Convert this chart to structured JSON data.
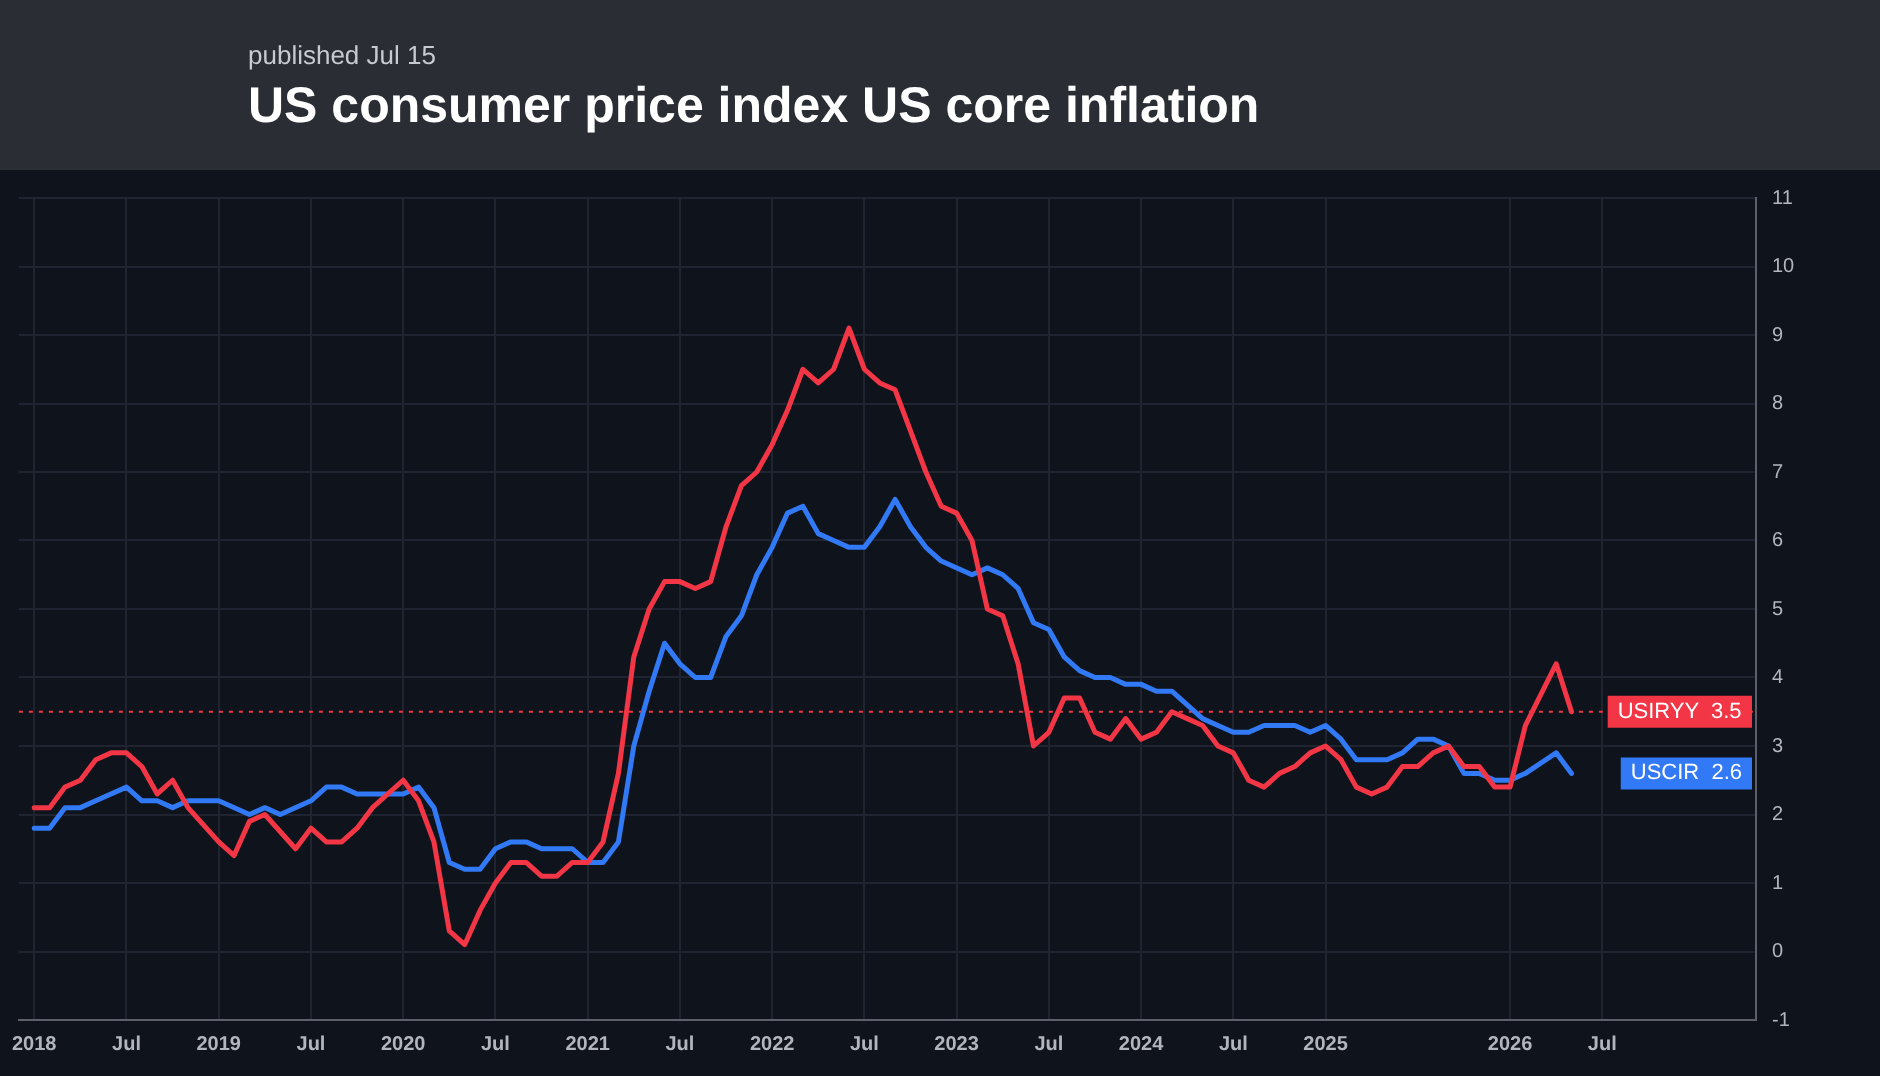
{
  "chart_data": {
    "type": "line",
    "title": "US consumer price index US core inflation",
    "subtitle": "published Jul 15",
    "xlim": [
      "2017-12",
      "2027-05"
    ],
    "xticks": [
      {
        "value": "2018-01",
        "label": "2018"
      },
      {
        "value": "2018-07",
        "label": "Jul"
      },
      {
        "value": "2019-01",
        "label": "2019"
      },
      {
        "value": "2019-07",
        "label": "Jul"
      },
      {
        "value": "2020-01",
        "label": "2020"
      },
      {
        "value": "2020-07",
        "label": "Jul"
      },
      {
        "value": "2021-01",
        "label": "2021"
      },
      {
        "value": "2021-07",
        "label": "Jul"
      },
      {
        "value": "2022-01",
        "label": "2022"
      },
      {
        "value": "2022-07",
        "label": "Jul"
      },
      {
        "value": "2023-01",
        "label": "2023"
      },
      {
        "value": "2023-07",
        "label": "Jul"
      },
      {
        "value": "2024-01",
        "label": "2024"
      },
      {
        "value": "2024-07",
        "label": "Jul"
      },
      {
        "value": "2025-01",
        "label": "2025"
      },
      {
        "value": "2026-01",
        "label": "2026"
      },
      {
        "value": "2026-07",
        "label": "Jul"
      }
    ],
    "ylim": [
      -1,
      11
    ],
    "yticks": [
      -1,
      0,
      1,
      2,
      3,
      4,
      5,
      6,
      7,
      8,
      9,
      10,
      11
    ],
    "grid": true,
    "legend": false,
    "line_style": "solid",
    "ref_lines": [
      {
        "axis": "y",
        "value": 3.5,
        "color": "#f23645",
        "line_style": "dotted"
      }
    ],
    "series": [
      {
        "name": "USIRYY",
        "color": "#f23645",
        "x": [
          "2018-01",
          "2018-02",
          "2018-03",
          "2018-04",
          "2018-05",
          "2018-06",
          "2018-07",
          "2018-08",
          "2018-09",
          "2018-10",
          "2018-11",
          "2019-01",
          "2019-02",
          "2019-03",
          "2019-04",
          "2019-06",
          "2019-07",
          "2019-08",
          "2019-09",
          "2019-10",
          "2019-11",
          "2020-01",
          "2020-02",
          "2020-03",
          "2020-04",
          "2020-05",
          "2020-06",
          "2020-07",
          "2020-08",
          "2020-09",
          "2020-10",
          "2020-11",
          "2020-12",
          "2021-01",
          "2021-02",
          "2021-03",
          "2021-04",
          "2021-05",
          "2021-06",
          "2021-07",
          "2021-08",
          "2021-09",
          "2021-10",
          "2021-11",
          "2021-12",
          "2022-01",
          "2022-02",
          "2022-03",
          "2022-04",
          "2022-05",
          "2022-06",
          "2022-07",
          "2022-08",
          "2022-09",
          "2022-10",
          "2022-11",
          "2022-12",
          "2023-01",
          "2023-02",
          "2023-03",
          "2023-04",
          "2023-05",
          "2023-06",
          "2023-07",
          "2023-08",
          "2023-09",
          "2023-10",
          "2023-11",
          "2023-12",
          "2024-01",
          "2024-02",
          "2024-03",
          "2024-04",
          "2024-05",
          "2024-06",
          "2024-07",
          "2024-08",
          "2024-09",
          "2024-10",
          "2024-11",
          "2024-12",
          "2025-01",
          "2025-02",
          "2025-03",
          "2025-04",
          "2025-05",
          "2025-06",
          "2025-07",
          "2025-08",
          "2025-09",
          "2025-10",
          "2025-11",
          "2025-12",
          "2026-01",
          "2026-02",
          "2026-04",
          "2026-05"
        ],
        "values": [
          2.1,
          2.1,
          2.4,
          2.5,
          2.8,
          2.9,
          2.9,
          2.7,
          2.3,
          2.5,
          2.1,
          1.6,
          1.4,
          1.9,
          2.0,
          1.5,
          1.8,
          1.6,
          1.6,
          1.8,
          2.1,
          2.5,
          2.2,
          1.6,
          0.3,
          0.1,
          0.6,
          1.0,
          1.3,
          1.3,
          1.1,
          1.1,
          1.3,
          1.3,
          1.6,
          2.6,
          4.3,
          5.0,
          5.4,
          5.4,
          5.3,
          5.4,
          6.2,
          6.8,
          7.0,
          7.4,
          7.9,
          8.5,
          8.3,
          8.5,
          9.1,
          8.5,
          8.3,
          8.2,
          7.6,
          7.0,
          6.5,
          6.4,
          6.0,
          5.0,
          4.9,
          4.2,
          3.0,
          3.2,
          3.7,
          3.7,
          3.2,
          3.1,
          3.4,
          3.1,
          3.2,
          3.5,
          3.4,
          3.3,
          3.0,
          2.9,
          2.5,
          2.4,
          2.6,
          2.7,
          2.9,
          3.0,
          2.8,
          2.4,
          2.3,
          2.4,
          2.7,
          2.7,
          2.9,
          3.0,
          2.7,
          2.7,
          2.4,
          2.4,
          3.3,
          4.2,
          3.5
        ],
        "value_labels": [
          null,
          null,
          null,
          null,
          null,
          null,
          null,
          null,
          null,
          null,
          null,
          null,
          null,
          null,
          null,
          null,
          null,
          null,
          null,
          null,
          null,
          null,
          null,
          null,
          null,
          null,
          null,
          null,
          null,
          null,
          null,
          null,
          null,
          null,
          null,
          null,
          null,
          null,
          null,
          null,
          null,
          null,
          null,
          null,
          null,
          null,
          null,
          null,
          null,
          null,
          null,
          null,
          null,
          null,
          null,
          null,
          null,
          null,
          null,
          null,
          null,
          null,
          null,
          null,
          null,
          null,
          null,
          null,
          null,
          null,
          null,
          null,
          null,
          null,
          null,
          null,
          null,
          null,
          null,
          null,
          null,
          null,
          null,
          null,
          null,
          null,
          null,
          null,
          null,
          null,
          null,
          null,
          null,
          null,
          null,
          null,
          "3.5"
        ]
      },
      {
        "name": "USCIR",
        "color": "#3179f5",
        "x": [
          "2018-01",
          "2018-02",
          "2018-03",
          "2018-04",
          "2018-05",
          "2018-07",
          "2018-08",
          "2018-09",
          "2018-10",
          "2018-11",
          "2019-01",
          "2019-03",
          "2019-04",
          "2019-05",
          "2019-07",
          "2019-08",
          "2019-09",
          "2019-10",
          "2020-01",
          "2020-02",
          "2020-03",
          "2020-04",
          "2020-05",
          "2020-06",
          "2020-07",
          "2020-08",
          "2020-09",
          "2020-10",
          "2020-12",
          "2021-01",
          "2021-02",
          "2021-03",
          "2021-04",
          "2021-05",
          "2021-06",
          "2021-07",
          "2021-08",
          "2021-09",
          "2021-10",
          "2021-11",
          "2021-12",
          "2022-01",
          "2022-02",
          "2022-03",
          "2022-04",
          "2022-05",
          "2022-06",
          "2022-07",
          "2022-08",
          "2022-09",
          "2022-10",
          "2022-11",
          "2022-12",
          "2023-02",
          "2023-03",
          "2023-04",
          "2023-05",
          "2023-06",
          "2023-07",
          "2023-08",
          "2023-09",
          "2023-10",
          "2023-11",
          "2023-12",
          "2024-01",
          "2024-02",
          "2024-03",
          "2024-04",
          "2024-05",
          "2024-06",
          "2024-07",
          "2024-08",
          "2024-09",
          "2024-10",
          "2024-11",
          "2024-12",
          "2025-01",
          "2025-02",
          "2025-03",
          "2025-05",
          "2025-06",
          "2025-07",
          "2025-08",
          "2025-09",
          "2025-10",
          "2025-11",
          "2025-12",
          "2026-01",
          "2026-02",
          "2026-04",
          "2026-05"
        ],
        "values": [
          1.8,
          1.8,
          2.1,
          2.1,
          2.2,
          2.4,
          2.2,
          2.2,
          2.1,
          2.2,
          2.2,
          2.0,
          2.1,
          2.0,
          2.2,
          2.4,
          2.4,
          2.3,
          2.3,
          2.4,
          2.1,
          1.3,
          1.2,
          1.2,
          1.5,
          1.6,
          1.6,
          1.5,
          1.5,
          1.3,
          1.3,
          1.6,
          3.0,
          3.8,
          4.5,
          4.2,
          4.0,
          4.0,
          4.6,
          4.9,
          5.5,
          5.9,
          6.4,
          6.5,
          6.1,
          6.0,
          5.9,
          5.9,
          6.2,
          6.6,
          6.2,
          5.9,
          5.7,
          5.5,
          5.6,
          5.5,
          5.3,
          4.8,
          4.7,
          4.3,
          4.1,
          4.0,
          4.0,
          3.9,
          3.9,
          3.8,
          3.8,
          3.6,
          3.4,
          3.3,
          3.2,
          3.2,
          3.3,
          3.3,
          3.3,
          3.2,
          3.3,
          3.1,
          2.8,
          2.8,
          2.9,
          3.1,
          3.1,
          3.0,
          2.6,
          2.6,
          2.5,
          2.5,
          2.6,
          2.9,
          2.6
        ],
        "value_labels": [
          null,
          null,
          null,
          null,
          null,
          null,
          null,
          null,
          null,
          null,
          null,
          null,
          null,
          null,
          null,
          null,
          null,
          null,
          null,
          null,
          null,
          null,
          null,
          null,
          null,
          null,
          null,
          null,
          null,
          null,
          null,
          null,
          null,
          null,
          null,
          null,
          null,
          null,
          null,
          null,
          null,
          null,
          null,
          null,
          null,
          null,
          null,
          null,
          null,
          null,
          null,
          null,
          null,
          null,
          null,
          null,
          null,
          null,
          null,
          null,
          null,
          null,
          null,
          null,
          null,
          null,
          null,
          null,
          null,
          null,
          null,
          null,
          null,
          null,
          null,
          null,
          null,
          null,
          null,
          null,
          null,
          null,
          null,
          null,
          null,
          null,
          null,
          null,
          null,
          null,
          "2.6"
        ]
      }
    ]
  }
}
